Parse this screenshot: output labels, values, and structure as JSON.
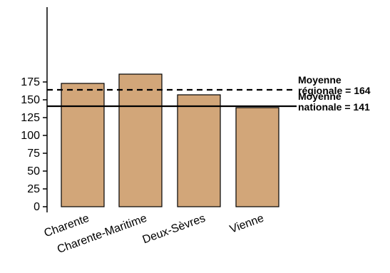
{
  "chart_data": {
    "type": "bar",
    "categories": [
      "Charente",
      "Charente-Maritime",
      "Deux-Sèvres",
      "Vienne"
    ],
    "values": [
      173,
      186,
      157,
      139
    ],
    "ylim": [
      0,
      186
    ],
    "yticks": [
      "0",
      "25",
      "50",
      "75",
      "100",
      "125",
      "150",
      "175"
    ],
    "bar_color": "#d2a679",
    "reference_lines": [
      {
        "value": 164,
        "style": "dashed",
        "label_line1": "Moyenne",
        "label_line2": "régionale = 164"
      },
      {
        "value": 141,
        "style": "solid",
        "label_line1": "Moyenne",
        "label_line2": "nationale = 141"
      }
    ],
    "grid": false,
    "legend": "none"
  }
}
